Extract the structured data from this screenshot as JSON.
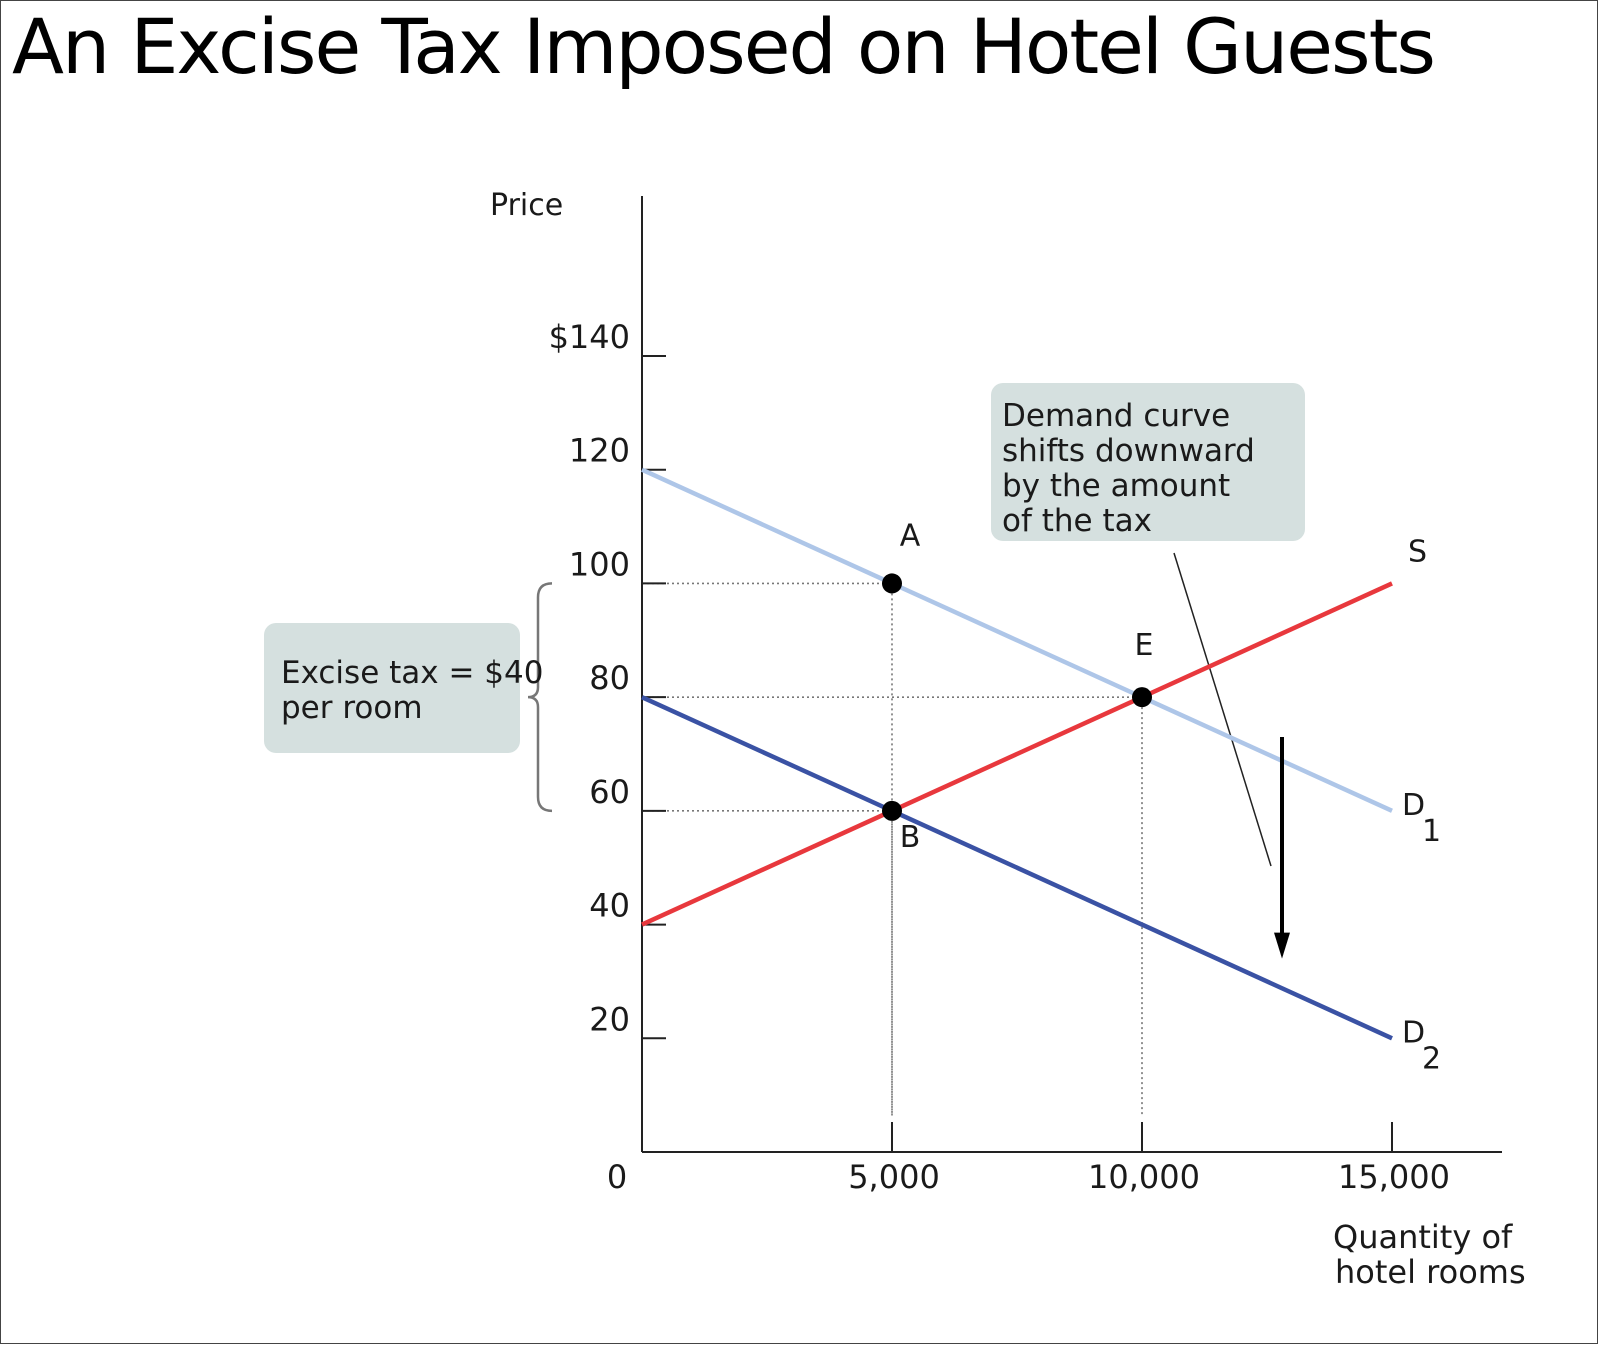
{
  "slide_title": "An Excise Tax Imposed on Hotel Guests",
  "chart_data": {
    "type": "line",
    "ylabel": "Price",
    "xlabel_lines": [
      "Quantity of",
      "hotel rooms"
    ],
    "xlim": [
      0,
      15000
    ],
    "ylim": [
      0,
      140
    ],
    "origin_label": "0",
    "x_ticks": [
      {
        "value": 5000,
        "label": "5,000"
      },
      {
        "value": 10000,
        "label": "10,000"
      },
      {
        "value": 15000,
        "label": "15,000"
      }
    ],
    "y_ticks": [
      {
        "value": 20,
        "label": "20"
      },
      {
        "value": 40,
        "label": "40"
      },
      {
        "value": 60,
        "label": "60"
      },
      {
        "value": 80,
        "label": "80"
      },
      {
        "value": 100,
        "label": "100"
      },
      {
        "value": 120,
        "label": "120"
      },
      {
        "value": 140,
        "label": "$140"
      }
    ],
    "series": [
      {
        "id": "D1",
        "name": "D",
        "subscript": "1",
        "color": "#aec6e8",
        "points": [
          [
            0,
            120
          ],
          [
            15000,
            60
          ]
        ]
      },
      {
        "id": "D2",
        "name": "D",
        "subscript": "2",
        "color": "#3a52a4",
        "points": [
          [
            0,
            80
          ],
          [
            15000,
            20
          ]
        ]
      },
      {
        "id": "S",
        "name": "S",
        "subscript": "",
        "color": "#e8383d",
        "points": [
          [
            0,
            40
          ],
          [
            15000,
            100
          ]
        ]
      }
    ],
    "points": [
      {
        "label": "A",
        "x": 5000,
        "y": 100
      },
      {
        "label": "E",
        "x": 10000,
        "y": 80
      },
      {
        "label": "B",
        "x": 5000,
        "y": 60
      }
    ],
    "annotations": {
      "tax_box": [
        "Excise tax = $40",
        "per room"
      ],
      "tax_range": [
        60,
        100
      ],
      "shift_box": [
        "Demand curve",
        "shifts downward",
        "by the amount",
        "of the tax"
      ],
      "shift_arrow": {
        "x": 12800,
        "from_y": 73,
        "to_y": 34
      }
    },
    "grid": false,
    "legend": "none"
  }
}
